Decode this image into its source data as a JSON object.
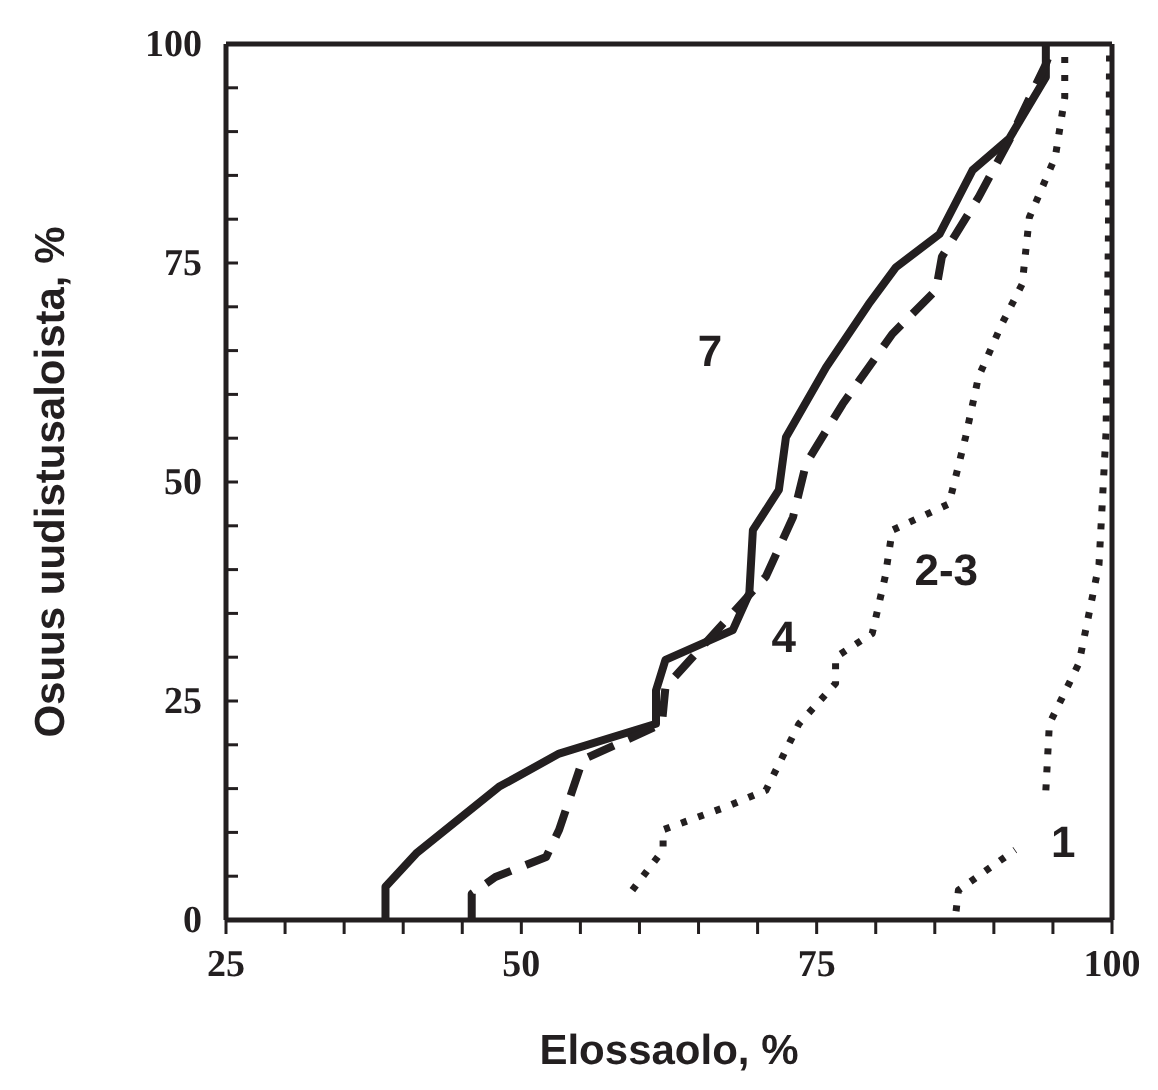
{
  "chart_data": {
    "type": "line",
    "xlabel": "Elossaolo, %",
    "ylabel": "Osuus uudistusaloista, %",
    "xlim": [
      25,
      100
    ],
    "ylim": [
      0,
      100
    ],
    "xticks": [
      25,
      {
        "value": 30,
        "label": null
      },
      {
        "value": 35,
        "label": null
      },
      {
        "value": 40,
        "label": null
      },
      {
        "value": 45,
        "label": null
      },
      50,
      {
        "value": 55,
        "label": null
      },
      {
        "value": 60,
        "label": null
      },
      {
        "value": 65,
        "label": null
      },
      {
        "value": 70,
        "label": null
      },
      75,
      {
        "value": 80,
        "label": null
      },
      {
        "value": 85,
        "label": null
      },
      {
        "value": 90,
        "label": null
      },
      {
        "value": 95,
        "label": null
      },
      100
    ],
    "yticks": [
      0,
      {
        "value": 5,
        "label": null
      },
      {
        "value": 10,
        "label": null
      },
      {
        "value": 15,
        "label": null
      },
      {
        "value": 20,
        "label": null
      },
      25,
      {
        "value": 30,
        "label": null
      },
      {
        "value": 35,
        "label": null
      },
      {
        "value": 40,
        "label": null
      },
      {
        "value": 45,
        "label": null
      },
      50,
      {
        "value": 55,
        "label": null
      },
      {
        "value": 60,
        "label": null
      },
      {
        "value": 65,
        "label": null
      },
      {
        "value": 70,
        "label": null
      },
      75,
      {
        "value": 80,
        "label": null
      },
      {
        "value": 85,
        "label": null
      },
      {
        "value": 90,
        "label": null
      },
      {
        "value": 95,
        "label": null
      },
      100
    ],
    "grid": false,
    "marker": "none",
    "series": [
      {
        "name": "7",
        "color": "#231f20",
        "line_style": "solid",
        "x": [
          38.5,
          38.5,
          41.1,
          48.1,
          53.2,
          61.4,
          61.4,
          62.2,
          67.9,
          69.3,
          69.6,
          71.8,
          72.4,
          75.8,
          79.4,
          81.7,
          85.4,
          88.2,
          91.3,
          94.4,
          94.4
        ],
        "values": [
          0,
          3.8,
          7.6,
          15.2,
          19,
          22.4,
          26.2,
          29.7,
          33.1,
          37.3,
          44.5,
          49.1,
          55.1,
          63.1,
          70.3,
          74.5,
          78.3,
          85.6,
          89.2,
          96.2,
          100
        ]
      },
      {
        "name": "4",
        "color": "#231f20",
        "line_style": "dashed",
        "x": [
          45.8,
          45.8,
          47.8,
          52.1,
          53.2,
          55.2,
          58.8,
          61.9,
          62.2,
          70.7,
          73.0,
          74.1,
          77.2,
          81.4,
          85.1,
          85.6,
          88.7,
          91.3,
          94.4,
          95
        ],
        "values": [
          0,
          3,
          4.9,
          7.2,
          10.3,
          18.3,
          20.5,
          22.4,
          26.6,
          39.2,
          46,
          52.1,
          58.9,
          66.9,
          71.9,
          75.7,
          82.5,
          89,
          97.7,
          100
        ]
      },
      {
        "name": "2-3",
        "color": "#231f20",
        "line_style": "dotted",
        "x": [
          59.4,
          62,
          62,
          67.3,
          70.7,
          73.5,
          76.6,
          76.6,
          79.7,
          80.8,
          81.4,
          86.2,
          87.6,
          88.7,
          90.7,
          92.4,
          93,
          95.2,
          96,
          96
        ],
        "values": [
          3.4,
          8,
          10.3,
          12.9,
          14.8,
          22.4,
          27,
          30,
          32.7,
          39.2,
          44.5,
          47.5,
          55.1,
          62,
          68.1,
          72.6,
          80.2,
          87.1,
          93.9,
          100
        ]
      },
      {
        "name": "1",
        "color": "#231f20",
        "line_style": "dotted",
        "x": [
          86.8,
          87,
          91.8,
          null,
          94.4,
          94.7,
          97.2,
          98.9,
          99.5,
          99.7,
          99.8
        ],
        "values": [
          1,
          3.4,
          8,
          null,
          14.8,
          22.4,
          29.3,
          40.6,
          55.8,
          78.6,
          100
        ]
      }
    ]
  }
}
